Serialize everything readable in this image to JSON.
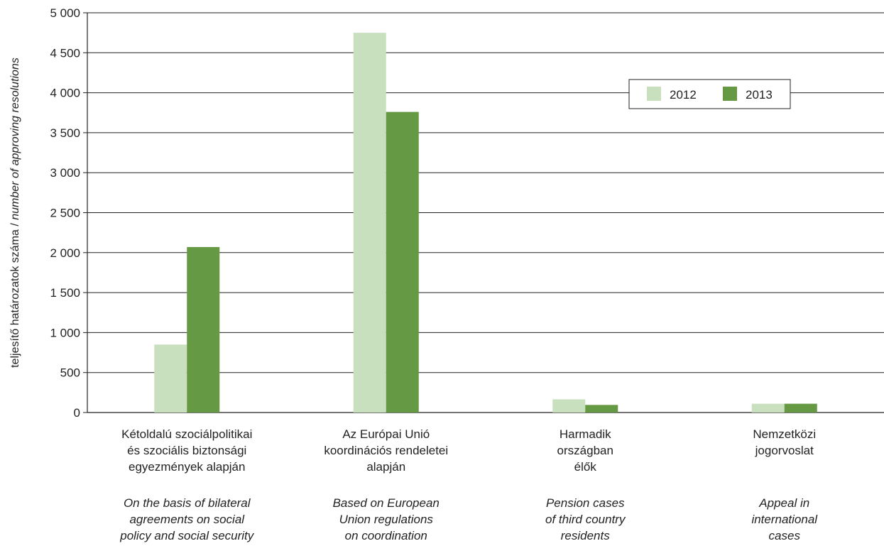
{
  "chart_data": {
    "type": "bar",
    "categories": [
      {
        "hu": [
          "Kétoldalú szociálpolitikai",
          "és szociális biztonsági",
          "egyezmények alapján"
        ],
        "en": [
          "On the basis of bilateral",
          "agreements on social",
          "policy and social security"
        ]
      },
      {
        "hu": [
          "Az Európai Unió",
          "koordinációs rendeletei",
          "alapján"
        ],
        "en": [
          "Based on European",
          "Union regulations",
          "on coordination"
        ]
      },
      {
        "hu": [
          "Harmadik",
          "országban",
          "élők"
        ],
        "en": [
          "Pension cases",
          "of third country",
          "residents"
        ]
      },
      {
        "hu": [
          "Nemzetközi",
          "jogorvoslat"
        ],
        "en": [
          "Appeal in",
          "international",
          "cases"
        ]
      }
    ],
    "series": [
      {
        "name": "2012",
        "color": "#c8e0be",
        "values": [
          850,
          4750,
          165,
          110
        ]
      },
      {
        "name": "2013",
        "color": "#669944",
        "values": [
          2070,
          3760,
          95,
          110
        ]
      }
    ],
    "ylabel_regular": "teljesítő határozatok száma / ",
    "ylabel_italic": "number of approving resolutions",
    "yticks": [
      "0",
      "500",
      "1 000",
      "1 500",
      "2 000",
      "2 500",
      "3 000",
      "3 500",
      "4 000",
      "4 500",
      "5 000"
    ],
    "ylim": [
      0,
      5000
    ],
    "grid": true,
    "legend_position": "top-right"
  }
}
